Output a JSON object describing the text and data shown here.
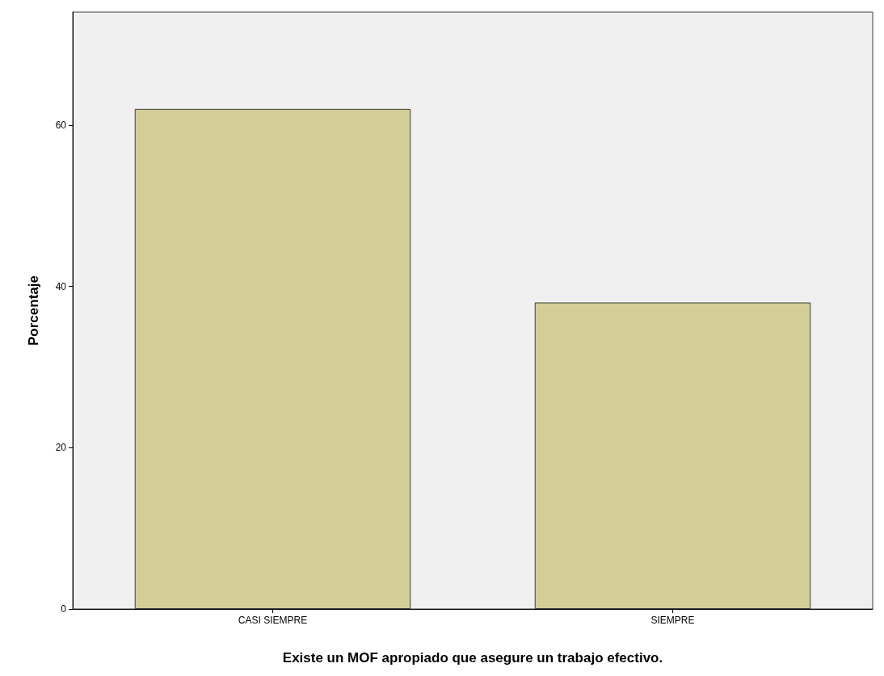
{
  "chart_data": {
    "type": "bar",
    "xlabel": "Existe un MOF apropiado que asegure un trabajo efectivo.",
    "ylabel": "Porcentaje",
    "categories": [
      "CASI SIEMPRE",
      "SIEMPRE"
    ],
    "values": [
      62,
      38
    ],
    "color": "#d3ce97",
    "ylim": [
      0,
      74
    ],
    "yticks": [
      0,
      20,
      40,
      60
    ],
    "grid": false
  }
}
